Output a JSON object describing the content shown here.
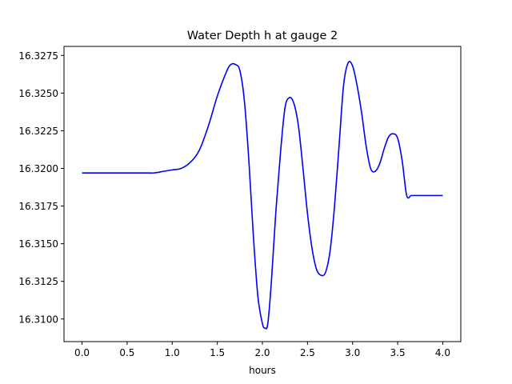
{
  "chart_data": {
    "type": "line",
    "title": "Water Depth h at gauge 2",
    "xlabel": "hours",
    "ylabel": "",
    "xlim": [
      -0.2,
      4.2
    ],
    "ylim": [
      16.3085,
      16.3281
    ],
    "xticks": [
      0.0,
      0.5,
      1.0,
      1.5,
      2.0,
      2.5,
      3.0,
      3.5,
      4.0
    ],
    "xtick_labels": [
      "0.0",
      "0.5",
      "1.0",
      "1.5",
      "2.0",
      "2.5",
      "3.0",
      "3.5",
      "4.0"
    ],
    "yticks": [
      16.31,
      16.3125,
      16.315,
      16.3175,
      16.32,
      16.3225,
      16.325,
      16.3275
    ],
    "ytick_labels": [
      "16.3100",
      "16.3125",
      "16.3150",
      "16.3175",
      "16.3200",
      "16.3225",
      "16.3250",
      "16.3275"
    ],
    "grid": false,
    "series": [
      {
        "color": "#0000ff",
        "x": [
          0.0,
          0.3,
          0.6,
          0.7,
          0.8,
          0.9,
          1.0,
          1.1,
          1.2,
          1.3,
          1.4,
          1.5,
          1.6,
          1.65,
          1.7,
          1.75,
          1.8,
          1.85,
          1.9,
          1.95,
          2.0,
          2.03,
          2.06,
          2.1,
          2.15,
          2.2,
          2.25,
          2.3,
          2.35,
          2.4,
          2.45,
          2.5,
          2.55,
          2.6,
          2.65,
          2.7,
          2.75,
          2.8,
          2.85,
          2.9,
          2.95,
          3.0,
          3.05,
          3.1,
          3.15,
          3.2,
          3.25,
          3.3,
          3.35,
          3.4,
          3.45,
          3.5,
          3.55,
          3.6,
          3.65,
          3.7,
          3.75,
          3.8,
          3.85,
          3.9,
          3.95,
          4.0
        ],
        "y": [
          16.3197,
          16.3197,
          16.3197,
          16.3197,
          16.3197,
          16.3198,
          16.3199,
          16.32,
          16.3204,
          16.3212,
          16.3228,
          16.3248,
          16.3264,
          16.3269,
          16.3269,
          16.3265,
          16.3245,
          16.3205,
          16.3155,
          16.3115,
          16.3097,
          16.3094,
          16.3097,
          16.3125,
          16.3172,
          16.321,
          16.324,
          16.3247,
          16.3243,
          16.3228,
          16.32,
          16.317,
          16.3147,
          16.3133,
          16.3129,
          16.3131,
          16.3145,
          16.3175,
          16.3215,
          16.3255,
          16.327,
          16.3268,
          16.3255,
          16.3237,
          16.3215,
          16.32,
          16.3198,
          16.3203,
          16.3213,
          16.3221,
          16.3223,
          16.322,
          16.3205,
          16.3182,
          16.3182,
          16.3182,
          16.3182,
          16.3182,
          16.3182,
          16.3182,
          16.3182,
          16.3182
        ]
      }
    ]
  }
}
